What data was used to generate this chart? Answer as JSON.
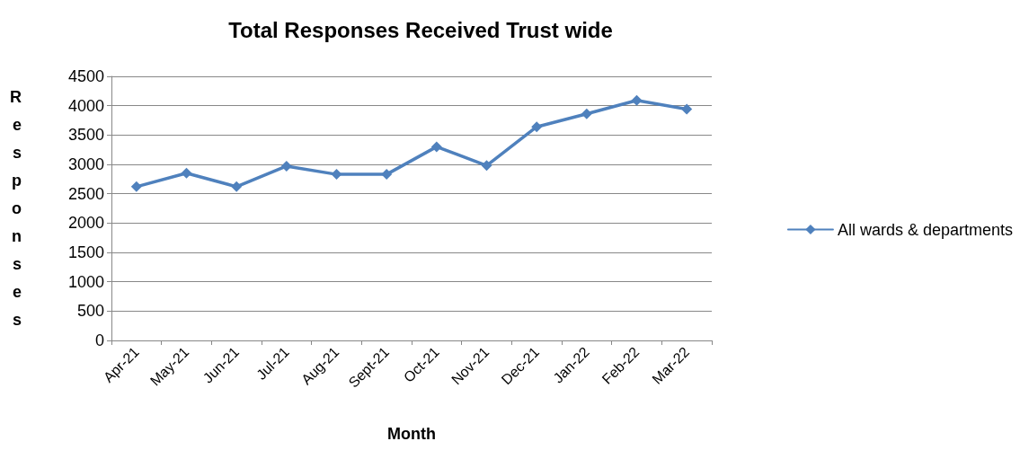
{
  "chart_data": {
    "type": "line",
    "title": "Total Responses Received Trust wide",
    "xlabel": "Month",
    "ylabel": "Responses",
    "categories": [
      "Apr-21",
      "May-21",
      "Jun-21",
      "Jul-21",
      "Aug-21",
      "Sept-21",
      "Oct-21",
      "Nov-21",
      "Dec-21",
      "Jan-22",
      "Feb-22",
      "Mar-22"
    ],
    "series": [
      {
        "name": "All wards & departments",
        "color": "#4f81bd",
        "values": [
          2620,
          2850,
          2620,
          2970,
          2830,
          2830,
          3300,
          2980,
          3640,
          3860,
          4090,
          3940
        ]
      }
    ],
    "ylim": [
      0,
      4500
    ],
    "yticks": [
      0,
      500,
      1000,
      1500,
      2000,
      2500,
      3000,
      3500,
      4000,
      4500
    ],
    "grid": "y",
    "legend": "right",
    "marker": "diamond",
    "line_style": "solid"
  }
}
